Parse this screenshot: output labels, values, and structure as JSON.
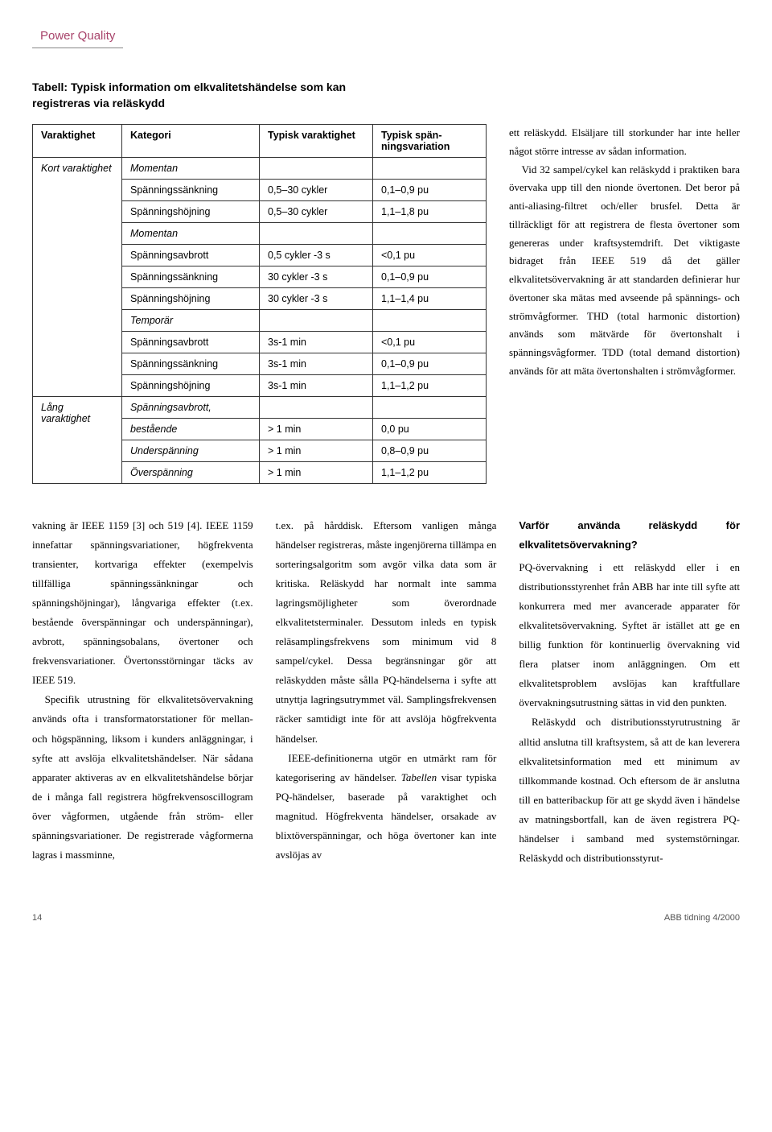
{
  "category_label": "Power Quality",
  "table": {
    "title_line1": "Tabell: Typisk information om elkvalitetshändelse som kan",
    "title_line2": "registreras via reläskydd",
    "headers": {
      "duration": "Varaktighet",
      "category": "Kategori",
      "typical_duration": "Typisk varaktighet",
      "voltage_variation": "Typisk spän-ningsvariation"
    },
    "group_short": "Kort varaktighet",
    "group_long": "Lång varaktighet",
    "rows": [
      {
        "cat": "Momentan",
        "td": "",
        "vv": "",
        "italic": true
      },
      {
        "cat": "Spänningssänkning",
        "td": "0,5–30 cykler",
        "vv": "0,1–0,9 pu"
      },
      {
        "cat": "Spänningshöjning",
        "td": "0,5–30 cykler",
        "vv": "1,1–1,8 pu"
      },
      {
        "cat": "Momentan",
        "td": "",
        "vv": "",
        "italic": true
      },
      {
        "cat": "Spänningsavbrott",
        "td": "0,5 cykler -3 s",
        "vv": "<0,1 pu"
      },
      {
        "cat": "Spänningssänkning",
        "td": "30 cykler -3 s",
        "vv": "0,1–0,9 pu"
      },
      {
        "cat": "Spänningshöjning",
        "td": "30 cykler -3 s",
        "vv": "1,1–1,4 pu"
      },
      {
        "cat": "Temporär",
        "td": "",
        "vv": "",
        "italic": true
      },
      {
        "cat": "Spänningsavbrott",
        "td": "3s-1 min",
        "vv": "<0,1 pu"
      },
      {
        "cat": "Spänningssänkning",
        "td": "3s-1 min",
        "vv": "0,1–0,9 pu"
      },
      {
        "cat": "Spänningshöjning",
        "td": "3s-1 min",
        "vv": "1,1–1,2 pu"
      },
      {
        "cat": "Spänningsavbrott,",
        "td": "",
        "vv": "",
        "italic": true
      },
      {
        "cat": "bestående",
        "td": "> 1 min",
        "vv": "0,0 pu",
        "italic": true
      },
      {
        "cat": "Underspänning",
        "td": "> 1 min",
        "vv": "0,8–0,9 pu",
        "italic": true
      },
      {
        "cat": "Överspänning",
        "td": "> 1 min",
        "vv": "1,1–1,2 pu",
        "italic": true
      }
    ]
  },
  "side_text": "ett reläskydd. Elsäljare till storkunder har inte heller något större intresse av sådan information.",
  "side_text2": "Vid 32 sampel/cykel kan reläskydd i praktiken bara övervaka upp till den nionde övertonen. Det beror på anti-aliasing-filtret och/eller brusfel. Detta är tillräckligt för att registrera de flesta övertoner som genereras under kraftsystemdrift. Det viktigaste bidraget från IEEE 519 då det gäller elkvalitetsövervakning är att standarden definierar hur övertoner ska mätas med avseende på spännings- och strömvågformer. THD (total harmonic distortion) används som mätvärde för övertonshalt i spänningsvågformer. TDD (total demand distortion) används för att mäta övertonshalten i strömvågformer.",
  "col1_p1": "vakning är IEEE 1159 [3] och 519 [4]. IEEE 1159 innefattar spänningsvariationer, högfrekventa transienter, kortvariga effekter (exempelvis tillfälliga spänningssänkningar och spänningshöjningar), långvariga effekter (t.ex. bestående överspänningar och underspänningar), avbrott, spänningsobalans, övertoner och frekvensvariationer. Övertonsstörningar täcks av IEEE 519.",
  "col1_p2": "Specifik utrustning för elkvalitetsövervakning används ofta i transformatorstationer för mellan- och högspänning, liksom i kunders anläggningar, i syfte att avslöja elkvalitetshändelser. När sådana apparater aktiveras av en elkvalitetshändelse börjar de i många fall registrera högfrekvensoscillogram över vågformen, utgående från ström- eller spänningsvariationer. De registrerade vågformerna lagras i massminne,",
  "col2_p1": "t.ex. på hårddisk. Eftersom vanligen många händelser registreras, måste ingenjörerna tillämpa en sorteringsalgoritm som avgör vilka data som är kritiska. Reläskydd har normalt inte samma lagringsmöjligheter som överordnade elkvalitetsterminaler. Dessutom inleds en typisk reläsamplingsfrekvens som minimum vid 8 sampel/cykel. Dessa begränsningar gör att reläskydden måste sålla PQ-händelserna i syfte att utnyttja lagringsutrymmet väl. Samplingsfrekvensen räcker samtidigt inte för att avslöja högfrekventa händelser.",
  "col2_p2a": "IEEE-definitionerna utgör en utmärkt ram för kategorisering av händelser. ",
  "col2_p2b": "Tabellen",
  "col2_p2c": " visar typiska PQ-händelser, baserade på varaktighet och magnitud. Högfrekventa händelser, orsakade av blixtöverspänningar, och höga övertoner kan inte avslöjas av",
  "col3_heading": "Varför använda reläskydd för elkvalitetsövervakning?",
  "col3_p1": "PQ-övervakning i ett reläskydd eller i en distributionsstyrenhet från ABB har inte till syfte att konkurrera med mer avancerade apparater för elkvalitetsövervakning. Syftet är istället att ge en billig funktion för kontinuerlig övervakning vid flera platser inom anläggningen. Om ett elkvalitetsproblem avslöjas kan kraftfullare övervakningsutrustning sättas in vid den punkten.",
  "col3_p2": "Reläskydd och distributionsstyrutrustning är alltid anslutna till kraftsystem, så att de kan leverera elkvalitetsinformation med ett minimum av tillkommande kostnad. Och eftersom de är anslutna till en batteribackup för att ge skydd även i händelse av matningsbortfall, kan de även registrera PQ-händelser i samband med systemstörningar. Reläskydd och distributionsstyrut-",
  "footer": {
    "page": "14",
    "pub": "ABB tidning 4/2000"
  }
}
